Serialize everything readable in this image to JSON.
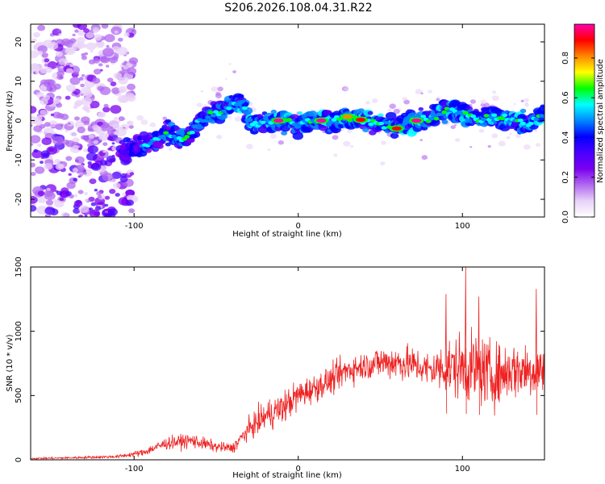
{
  "chart_data": [
    {
      "type": "heatmap",
      "title": "S206.2026.108.04.31.R22",
      "xlabel": "Height of straight line (km)",
      "ylabel": "Frequency (Hz)",
      "xlim": [
        -163,
        150
      ],
      "ylim": [
        -24.5,
        24.5
      ],
      "xticks": [
        -100,
        0,
        100
      ],
      "yticks": [
        -20,
        -10,
        0,
        10,
        20
      ],
      "colorbar": {
        "label": "Normalized spectral amplitude",
        "range": [
          0.0,
          0.97
        ],
        "ticks": [
          "0.0",
          "0.2",
          "0.4",
          "0.6",
          "0.8"
        ],
        "colors": [
          "#ffffff",
          "#e8d2f8",
          "#b068f0",
          "#7a00f0",
          "#4a00ff",
          "#0000ff",
          "#0088ff",
          "#00ffff",
          "#00ff00",
          "#ffff00",
          "#ff8800",
          "#ff0000",
          "#ff00aa"
        ]
      },
      "ridge": {
        "x": [
          -163,
          -130,
          -100,
          -90,
          -80,
          -70,
          -60,
          -50,
          -40,
          -35,
          -30,
          -25,
          -20,
          -10,
          0,
          10,
          20,
          30,
          40,
          50,
          60,
          70,
          80,
          90,
          100,
          110,
          120,
          130,
          140,
          150
        ],
        "y": [
          -12,
          -11,
          -7,
          -6,
          -3,
          -5,
          0,
          2,
          4,
          5,
          0,
          -1,
          0,
          0,
          -1,
          0,
          0,
          1,
          0,
          -1,
          -2,
          0,
          0,
          3,
          2,
          0,
          1,
          0,
          -1,
          2
        ],
        "peak_x": [
          -12,
          14,
          30,
          38,
          60,
          72
        ],
        "peak_amplitude": [
          0.95,
          0.95,
          0.8,
          0.9,
          0.85,
          0.95
        ]
      }
    },
    {
      "type": "line",
      "title": "",
      "xlabel": "Height of straight line (km)",
      "ylabel": "SNR (10 * v/v)",
      "xlim": [
        -163,
        150
      ],
      "ylim": [
        0,
        1500
      ],
      "xticks": [
        -100,
        0,
        100
      ],
      "yticks": [
        0,
        500,
        1000,
        1500
      ],
      "series": [
        {
          "name": "SNR",
          "color": "#ee2222",
          "envelope_x": [
            -163,
            -140,
            -110,
            -95,
            -80,
            -65,
            -50,
            -40,
            -30,
            -20,
            -10,
            0,
            10,
            20,
            30,
            40,
            50,
            60,
            70,
            80,
            90,
            100,
            110,
            120,
            130,
            140,
            150
          ],
          "envelope_mean": [
            10,
            15,
            25,
            55,
            130,
            150,
            100,
            90,
            240,
            340,
            400,
            500,
            560,
            620,
            700,
            730,
            760,
            760,
            740,
            700,
            720,
            720,
            700,
            650,
            700,
            700,
            700
          ],
          "envelope_spread": [
            8,
            10,
            15,
            35,
            60,
            70,
            50,
            50,
            100,
            150,
            160,
            150,
            130,
            140,
            150,
            130,
            160,
            180,
            170,
            170,
            260,
            320,
            340,
            300,
            280,
            280,
            260
          ],
          "peaks": [
            {
              "x": 102,
              "y": 1500
            },
            {
              "x": 90,
              "y": 1290
            },
            {
              "x": 110,
              "y": 1270
            },
            {
              "x": 145,
              "y": 1330
            }
          ]
        }
      ]
    }
  ]
}
